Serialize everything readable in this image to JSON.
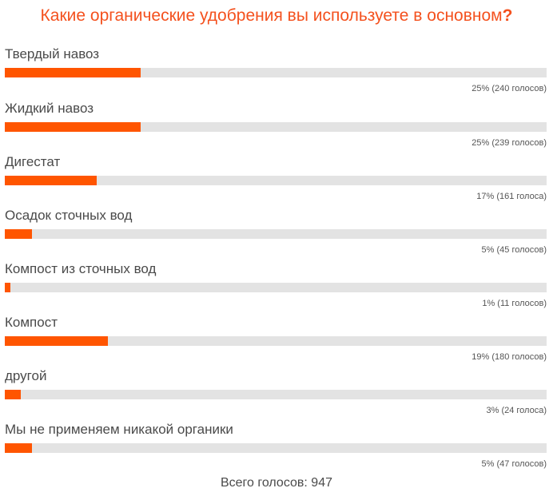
{
  "poll": {
    "title": "Какие органические удобрения вы используете в основном",
    "title_mark": "?",
    "total_label": "Всего голосов: 947",
    "accent_color": "#ff5500",
    "track_color": "#e3e3e3"
  },
  "options": [
    {
      "label": "Твердый навоз",
      "percent": 25,
      "votes": 240,
      "stat": "25% (240 голосов)"
    },
    {
      "label": "Жидкий навоз",
      "percent": 25,
      "votes": 239,
      "stat": "25% (239 голосов)"
    },
    {
      "label": "Дигестат",
      "percent": 17,
      "votes": 161,
      "stat": "17% (161 голоса)"
    },
    {
      "label": "Осадок сточных вод",
      "percent": 5,
      "votes": 45,
      "stat": "5% (45 голосов)"
    },
    {
      "label": "Компост из сточных вод",
      "percent": 1,
      "votes": 11,
      "stat": "1% (11 голосов)"
    },
    {
      "label": "Компост",
      "percent": 19,
      "votes": 180,
      "stat": "19% (180 голосов)"
    },
    {
      "label": "другой",
      "percent": 3,
      "votes": 24,
      "stat": "3% (24 голоса)"
    },
    {
      "label": "Мы не применяем никакой органики",
      "percent": 5,
      "votes": 47,
      "stat": "5% (47 голосов)"
    }
  ],
  "chart_data": {
    "type": "bar",
    "orientation": "horizontal",
    "title": "Какие органические удобрения вы используете в основном?",
    "categories": [
      "Твердый навоз",
      "Жидкий навоз",
      "Дигестат",
      "Осадок сточных вод",
      "Компост из сточных вод",
      "Компост",
      "другой",
      "Мы не применяем никакой органики"
    ],
    "series": [
      {
        "name": "percent",
        "values": [
          25,
          25,
          17,
          5,
          1,
          19,
          3,
          5
        ]
      },
      {
        "name": "votes",
        "values": [
          240,
          239,
          161,
          45,
          11,
          180,
          24,
          47
        ]
      }
    ],
    "total_votes": 947,
    "xlim": [
      0,
      100
    ],
    "grid": false,
    "legend": "none"
  }
}
